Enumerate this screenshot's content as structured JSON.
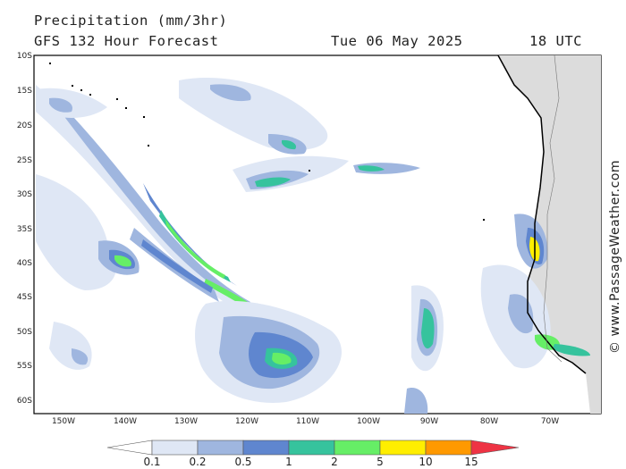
{
  "header": {
    "title": "Precipitation (mm/3hr)",
    "subtitle": "GFS 132 Hour Forecast",
    "date": "Tue 06 May 2025",
    "time": "18 UTC"
  },
  "axes": {
    "lat_labels": [
      "10S",
      "15S",
      "20S",
      "25S",
      "30S",
      "35S",
      "40S",
      "45S",
      "50S",
      "55S",
      "60S"
    ],
    "lon_labels": [
      "150W",
      "140W",
      "130W",
      "120W",
      "110W",
      "100W",
      "90W",
      "80W",
      "70W"
    ]
  },
  "legend": {
    "labels": [
      "0.1",
      "0.2",
      "0.5",
      "1",
      "2",
      "5",
      "10",
      "15"
    ],
    "colors": [
      "#ffffff",
      "#dfe7f5",
      "#9fb6df",
      "#5f86cf",
      "#36c39d",
      "#66ee66",
      "#ffee00",
      "#ff9900",
      "#ee3344"
    ]
  },
  "credit": "© www.PassageWeather.com",
  "colors": {
    "rain_very_light": "#dfe7f5",
    "rain_light": "#9fb6df",
    "rain_moderate": "#5f86cf",
    "rain_heavy": "#36c39d",
    "rain_very_heavy": "#66ee66",
    "land": "#dcdcdc"
  }
}
